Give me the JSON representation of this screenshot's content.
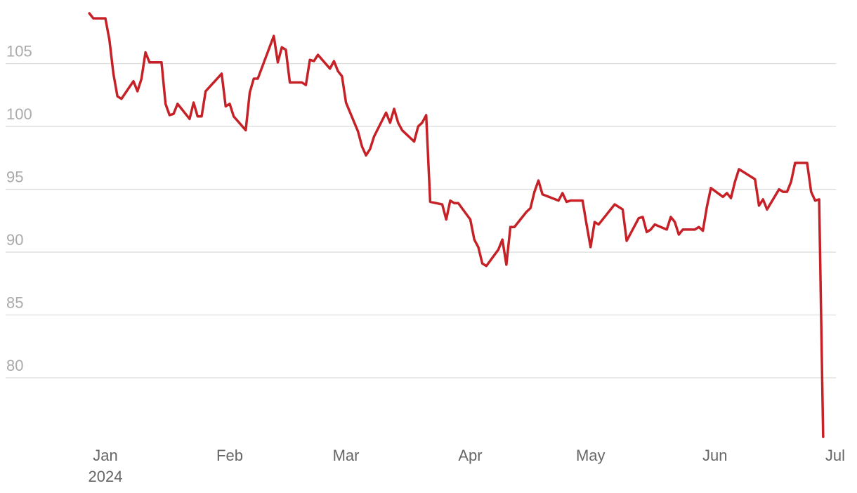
{
  "chart_data": {
    "type": "line",
    "x": [
      -3,
      -2,
      1,
      2,
      3,
      4,
      5,
      8,
      9,
      10,
      11,
      12,
      15,
      16,
      17,
      18,
      19,
      22,
      23,
      24,
      25,
      26,
      30,
      31,
      32,
      33,
      36,
      37,
      38,
      39,
      43,
      44,
      45,
      46,
      47,
      50,
      51,
      52,
      53,
      54,
      57,
      58,
      59,
      60,
      61,
      64,
      65,
      66,
      67,
      68,
      71,
      72,
      73,
      74,
      75,
      78,
      79,
      80,
      81,
      82,
      85,
      86,
      87,
      88,
      89,
      92,
      93,
      94,
      95,
      96,
      99,
      100,
      101,
      102,
      103,
      106,
      107,
      108,
      109,
      110,
      114,
      115,
      116,
      117,
      120,
      121,
      122,
      123,
      124,
      128,
      130,
      131,
      134,
      135,
      136,
      137,
      138,
      141,
      142,
      143,
      144,
      145,
      148,
      149,
      150,
      151,
      152,
      155,
      156,
      157,
      158,
      159,
      162,
      163,
      164,
      165,
      166,
      169,
      170,
      171,
      172,
      173,
      176,
      177,
      178,
      179,
      180
    ],
    "values": [
      109.0,
      108.6,
      108.6,
      106.9,
      104.2,
      102.4,
      102.2,
      103.6,
      102.8,
      103.8,
      105.9,
      105.1,
      105.1,
      101.8,
      100.9,
      101.0,
      101.8,
      100.6,
      101.9,
      100.8,
      100.8,
      102.8,
      104.2,
      101.6,
      101.8,
      100.8,
      99.7,
      102.7,
      103.8,
      103.8,
      107.2,
      105.1,
      106.3,
      106.1,
      103.5,
      103.5,
      103.3,
      105.3,
      105.2,
      105.7,
      104.6,
      105.2,
      104.4,
      104.0,
      101.9,
      99.6,
      98.4,
      97.7,
      98.2,
      99.2,
      101.1,
      100.3,
      101.4,
      100.3,
      99.7,
      98.8,
      100.0,
      100.3,
      100.9,
      94.0,
      93.8,
      92.6,
      94.1,
      93.9,
      93.9,
      92.6,
      91.0,
      90.4,
      89.1,
      88.9,
      90.2,
      91.0,
      89.0,
      92.0,
      92.0,
      93.2,
      93.5,
      94.8,
      95.7,
      94.6,
      94.1,
      94.7,
      94.0,
      94.1,
      94.1,
      92.2,
      90.4,
      92.4,
      92.2,
      93.8,
      93.4,
      90.9,
      92.7,
      92.8,
      91.6,
      91.8,
      92.2,
      91.8,
      92.8,
      92.4,
      91.4,
      91.8,
      91.8,
      92.0,
      91.7,
      93.6,
      95.1,
      94.4,
      94.7,
      94.3,
      95.6,
      96.6,
      96.0,
      95.8,
      93.7,
      94.2,
      93.4,
      95.0,
      94.8,
      94.8,
      95.6,
      97.1,
      97.1,
      94.8,
      94.1,
      94.2,
      75.3
    ],
    "color": "#c62127",
    "xlim": [
      -25,
      188
    ],
    "xticks": [
      {
        "value": 1,
        "label": "Jan\n2024"
      },
      {
        "value": 32,
        "label": "Feb"
      },
      {
        "value": 61,
        "label": "Mar"
      },
      {
        "value": 92,
        "label": "Apr"
      },
      {
        "value": 122,
        "label": "May"
      },
      {
        "value": 153,
        "label": "Jun"
      },
      {
        "value": 183,
        "label": "Jul"
      }
    ],
    "ylim": [
      75,
      109
    ],
    "yticks": [
      80,
      85,
      90,
      95,
      100,
      105
    ],
    "grid": true
  }
}
